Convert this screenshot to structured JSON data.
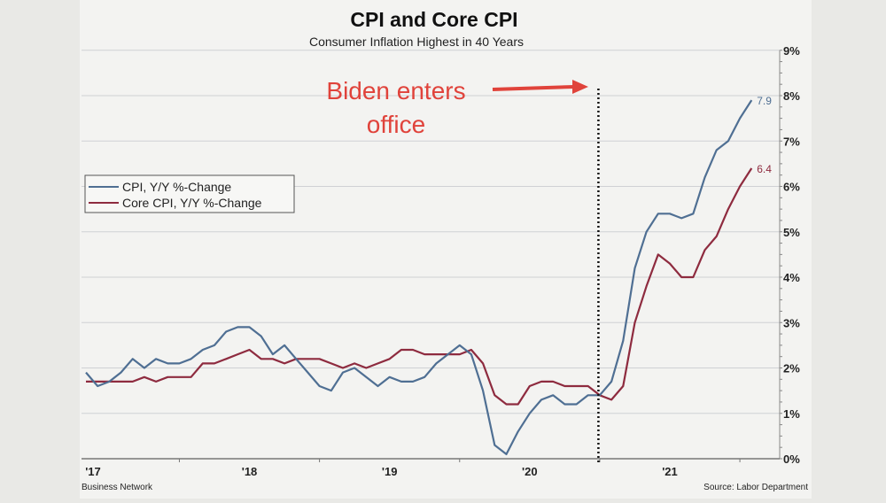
{
  "chart_data": {
    "type": "line",
    "title": "CPI and Core CPI",
    "subtitle": "Consumer Inflation Highest in 40 Years",
    "xlabel": "",
    "ylabel": "",
    "ylim": [
      0,
      9
    ],
    "y_ticks": [
      "0%",
      "1%",
      "2%",
      "3%",
      "4%",
      "5%",
      "6%",
      "7%",
      "8%",
      "9%"
    ],
    "x_tick_labels": [
      "'17",
      "'18",
      "'19",
      "'20",
      "'21"
    ],
    "x_start": "2017-05",
    "x_end": "2022-02",
    "grid": true,
    "legend_position": "left-middle",
    "series": [
      {
        "name": "CPI, Y/Y %-Change",
        "color": "#4f6f93",
        "end_label": "7.9",
        "values": [
          1.9,
          1.6,
          1.7,
          1.9,
          2.2,
          2.0,
          2.2,
          2.1,
          2.1,
          2.2,
          2.4,
          2.5,
          2.8,
          2.9,
          2.9,
          2.7,
          2.3,
          2.5,
          2.2,
          1.9,
          1.6,
          1.5,
          1.9,
          2.0,
          1.8,
          1.6,
          1.8,
          1.7,
          1.7,
          1.8,
          2.1,
          2.3,
          2.5,
          2.3,
          1.5,
          0.3,
          0.1,
          0.6,
          1.0,
          1.3,
          1.4,
          1.2,
          1.2,
          1.4,
          1.4,
          1.7,
          2.6,
          4.2,
          5.0,
          5.4,
          5.4,
          5.3,
          5.4,
          6.2,
          6.8,
          7.0,
          7.5,
          7.9
        ]
      },
      {
        "name": "Core CPI, Y/Y %-Change",
        "color": "#8e2b3f",
        "end_label": "6.4",
        "values": [
          1.7,
          1.7,
          1.7,
          1.7,
          1.7,
          1.8,
          1.7,
          1.8,
          1.8,
          1.8,
          2.1,
          2.1,
          2.2,
          2.3,
          2.4,
          2.2,
          2.2,
          2.1,
          2.2,
          2.2,
          2.2,
          2.1,
          2.0,
          2.1,
          2.0,
          2.1,
          2.2,
          2.4,
          2.4,
          2.3,
          2.3,
          2.3,
          2.3,
          2.4,
          2.1,
          1.4,
          1.2,
          1.2,
          1.6,
          1.7,
          1.7,
          1.6,
          1.6,
          1.6,
          1.4,
          1.3,
          1.6,
          3.0,
          3.8,
          4.5,
          4.3,
          4.0,
          4.0,
          4.6,
          4.9,
          5.5,
          6.0,
          6.4
        ]
      }
    ],
    "annotations": [
      {
        "text_line1": "Biden enters",
        "text_line2": "office",
        "color": "#e0433b",
        "marks_month_index": 44
      }
    ],
    "footer_left": "Business Network",
    "footer_right": "Source: Labor Department"
  }
}
